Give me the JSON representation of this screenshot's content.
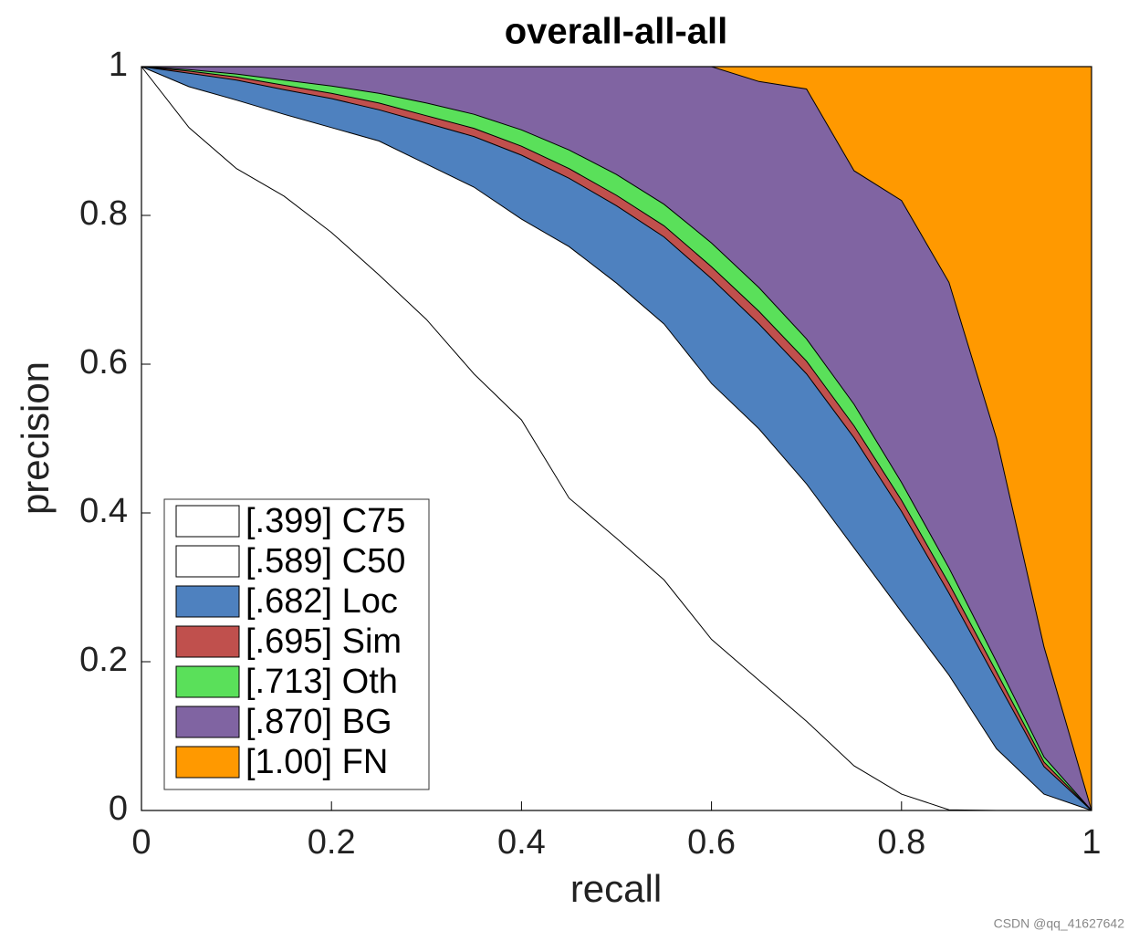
{
  "chart_data": {
    "type": "area",
    "title": "overall-all-all",
    "x_label": "recall",
    "y_label": "precision",
    "x": [
      0,
      0.05,
      0.1,
      0.15,
      0.2,
      0.25,
      0.3,
      0.35,
      0.4,
      0.45,
      0.5,
      0.55,
      0.6,
      0.65,
      0.7,
      0.75,
      0.8,
      0.85,
      0.9,
      0.95,
      1
    ],
    "series": [
      {
        "name": "[.399] C75",
        "color": "#ffffff",
        "values": [
          1,
          0.918,
          0.863,
          0.826,
          0.777,
          0.72,
          0.66,
          0.587,
          0.525,
          0.42,
          0.366,
          0.31,
          0.23,
          0.175,
          0.12,
          0.06,
          0.022,
          0.001,
          0,
          0,
          0
        ]
      },
      {
        "name": "[.589] C50",
        "color": "#ffffff",
        "values": [
          1,
          0.973,
          0.955,
          0.936,
          0.918,
          0.9,
          0.869,
          0.838,
          0.795,
          0.758,
          0.709,
          0.654,
          0.574,
          0.513,
          0.439,
          0.353,
          0.267,
          0.182,
          0.083,
          0.022,
          0
        ]
      },
      {
        "name": "[.682] Loc",
        "color": "#4e81bf",
        "values": [
          1,
          0.991,
          0.982,
          0.969,
          0.957,
          0.942,
          0.924,
          0.906,
          0.881,
          0.85,
          0.813,
          0.771,
          0.715,
          0.654,
          0.587,
          0.501,
          0.402,
          0.292,
          0.175,
          0.059,
          0
        ]
      },
      {
        "name": "[.695] Sim",
        "color": "#c0504d",
        "values": [
          1,
          0.994,
          0.986,
          0.975,
          0.964,
          0.951,
          0.934,
          0.917,
          0.893,
          0.863,
          0.827,
          0.786,
          0.731,
          0.671,
          0.604,
          0.517,
          0.417,
          0.305,
          0.186,
          0.065,
          0
        ]
      },
      {
        "name": "[.713] Oth",
        "color": "#5ae05a",
        "values": [
          1,
          0.996,
          0.99,
          0.982,
          0.974,
          0.964,
          0.951,
          0.936,
          0.915,
          0.888,
          0.855,
          0.815,
          0.763,
          0.703,
          0.634,
          0.546,
          0.441,
          0.326,
          0.2,
          0.072,
          0
        ]
      },
      {
        "name": "[.870] BG",
        "color": "#8064a2",
        "values": [
          1,
          1,
          1,
          1,
          1,
          1,
          1,
          1,
          1,
          1,
          1,
          1,
          1,
          0.98,
          0.97,
          0.86,
          0.82,
          0.71,
          0.5,
          0.22,
          0
        ]
      },
      {
        "name": "[1.00] FN",
        "color": "#ff9900",
        "values": [
          1,
          1,
          1,
          1,
          1,
          1,
          1,
          1,
          1,
          1,
          1,
          1,
          1,
          1,
          1,
          1,
          1,
          1,
          1,
          1,
          1
        ]
      }
    ],
    "xlim": [
      0,
      1
    ],
    "ylim": [
      0,
      1
    ],
    "xticks": [
      0,
      0.2,
      0.4,
      0.6,
      0.8,
      1
    ],
    "yticks": [
      0,
      0.2,
      0.4,
      0.6,
      0.8,
      1
    ],
    "legend": "lower left"
  },
  "watermark": "CSDN @qq_41627642"
}
